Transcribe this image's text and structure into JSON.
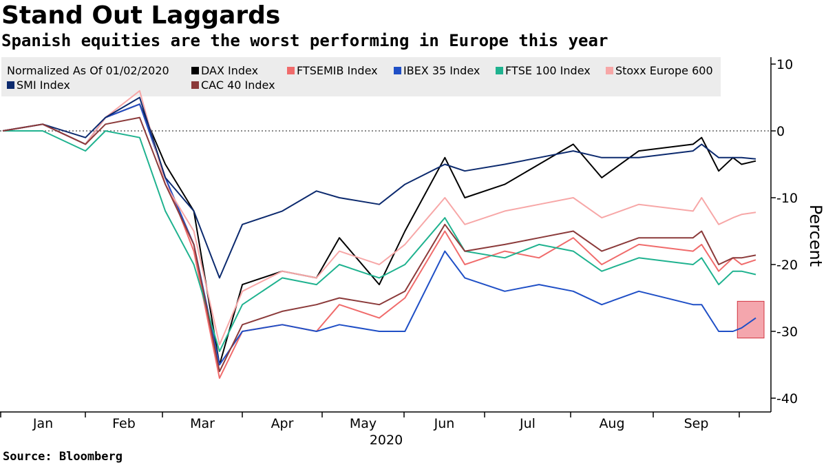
{
  "title": "Stand Out Laggards",
  "subtitle": "Spanish equities are the worst performing in Europe this year",
  "source": "Source: Bloomberg",
  "legend_title": "Normalized As Of 01/02/2020",
  "chart_data": {
    "type": "line",
    "title": "Stand Out Laggards",
    "subtitle": "Spanish equities are the worst performing in Europe this year",
    "xlabel": "2020",
    "ylabel": "Percent",
    "x_tick_labels": [
      "Jan",
      "Feb",
      "Mar",
      "Apr",
      "May",
      "Jun",
      "Jul",
      "Aug",
      "Sep"
    ],
    "x_range": [
      "2020-01-02",
      "2020-09-22"
    ],
    "y_ticks": [
      10,
      0,
      -10,
      -20,
      -30,
      -40
    ],
    "ylim": [
      -40,
      10
    ],
    "y_axis_position": "right",
    "grid": false,
    "legend_placement": "top-left",
    "reference_line": {
      "y": 0,
      "style": "dotted"
    },
    "highlight_box": {
      "x": [
        "2020-09-17",
        "2020-09-22"
      ],
      "y": [
        -25.5,
        -31
      ],
      "color": "#f4a6ad"
    },
    "series": [
      {
        "name": "DAX Index",
        "color": "#000000",
        "x": [
          "2020-01-02",
          "2020-01-16",
          "2020-01-31",
          "2020-02-07",
          "2020-02-19",
          "2020-02-28",
          "2020-03-09",
          "2020-03-18",
          "2020-03-26",
          "2020-04-09",
          "2020-04-21",
          "2020-04-29",
          "2020-05-13",
          "2020-05-22",
          "2020-06-05",
          "2020-06-12",
          "2020-06-26",
          "2020-07-08",
          "2020-07-20",
          "2020-07-30",
          "2020-08-12",
          "2020-08-31",
          "2020-09-03",
          "2020-09-09",
          "2020-09-14",
          "2020-09-17",
          "2020-09-22"
        ],
        "values": [
          0,
          1,
          -2,
          2,
          4,
          -5,
          -12,
          -35,
          -23,
          -21,
          -22,
          -16,
          -23,
          -15,
          -4,
          -10,
          -8,
          -5,
          -2,
          -7,
          -3,
          -2,
          -1,
          -6,
          -4,
          -5,
          -4.5
        ]
      },
      {
        "name": "FTSEMIB Index",
        "color": "#f06b6b",
        "x": [
          "2020-01-02",
          "2020-01-16",
          "2020-01-31",
          "2020-02-07",
          "2020-02-19",
          "2020-02-28",
          "2020-03-09",
          "2020-03-18",
          "2020-03-26",
          "2020-04-09",
          "2020-04-21",
          "2020-04-29",
          "2020-05-13",
          "2020-05-22",
          "2020-06-05",
          "2020-06-12",
          "2020-06-26",
          "2020-07-08",
          "2020-07-20",
          "2020-07-30",
          "2020-08-12",
          "2020-08-31",
          "2020-09-03",
          "2020-09-09",
          "2020-09-14",
          "2020-09-17",
          "2020-09-22"
        ],
        "values": [
          0,
          1,
          -2,
          2,
          4,
          -7,
          -18,
          -37,
          -30,
          -29,
          -30,
          -26,
          -28,
          -25,
          -15,
          -20,
          -18,
          -19,
          -16,
          -20,
          -17,
          -18,
          -17,
          -21,
          -19,
          -20,
          -19.3
        ]
      },
      {
        "name": "IBEX 35 Index",
        "color": "#1f4fc6",
        "x": [
          "2020-01-02",
          "2020-01-16",
          "2020-01-31",
          "2020-02-07",
          "2020-02-19",
          "2020-02-28",
          "2020-03-09",
          "2020-03-18",
          "2020-03-26",
          "2020-04-09",
          "2020-04-21",
          "2020-04-29",
          "2020-05-13",
          "2020-05-22",
          "2020-06-05",
          "2020-06-12",
          "2020-06-26",
          "2020-07-08",
          "2020-07-20",
          "2020-07-30",
          "2020-08-12",
          "2020-08-31",
          "2020-09-03",
          "2020-09-09",
          "2020-09-14",
          "2020-09-17",
          "2020-09-22"
        ],
        "values": [
          0,
          1,
          -2,
          2,
          4,
          -7,
          -17,
          -35,
          -30,
          -29,
          -30,
          -29,
          -30,
          -30,
          -18,
          -22,
          -24,
          -23,
          -24,
          -26,
          -24,
          -26,
          -26,
          -30,
          -30,
          -29.5,
          -28
        ]
      },
      {
        "name": "FTSE 100 Index",
        "color": "#1fb28f",
        "x": [
          "2020-01-02",
          "2020-01-16",
          "2020-01-31",
          "2020-02-07",
          "2020-02-19",
          "2020-02-28",
          "2020-03-09",
          "2020-03-18",
          "2020-03-26",
          "2020-04-09",
          "2020-04-21",
          "2020-04-29",
          "2020-05-13",
          "2020-05-22",
          "2020-06-05",
          "2020-06-12",
          "2020-06-26",
          "2020-07-08",
          "2020-07-20",
          "2020-07-30",
          "2020-08-12",
          "2020-08-31",
          "2020-09-03",
          "2020-09-09",
          "2020-09-14",
          "2020-09-17",
          "2020-09-22"
        ],
        "values": [
          0,
          0,
          -3,
          0,
          -1,
          -12,
          -20,
          -33,
          -26,
          -22,
          -23,
          -20,
          -22,
          -20,
          -13,
          -18,
          -19,
          -17,
          -18,
          -21,
          -19,
          -20,
          -19,
          -23,
          -21,
          -21,
          -21.5
        ]
      },
      {
        "name": "Stoxx Europe 600",
        "color": "#f7a7a7",
        "x": [
          "2020-01-02",
          "2020-01-16",
          "2020-01-31",
          "2020-02-07",
          "2020-02-19",
          "2020-02-28",
          "2020-03-09",
          "2020-03-18",
          "2020-03-26",
          "2020-04-09",
          "2020-04-21",
          "2020-04-29",
          "2020-05-13",
          "2020-05-22",
          "2020-06-05",
          "2020-06-12",
          "2020-06-26",
          "2020-07-08",
          "2020-07-20",
          "2020-07-30",
          "2020-08-12",
          "2020-08-31",
          "2020-09-03",
          "2020-09-09",
          "2020-09-14",
          "2020-09-17",
          "2020-09-22"
        ],
        "values": [
          0,
          1,
          -2,
          2,
          6,
          -8,
          -15,
          -32,
          -24,
          -21,
          -22,
          -18,
          -20,
          -17,
          -10,
          -14,
          -12,
          -11,
          -10,
          -13,
          -11,
          -12,
          -10,
          -14,
          -13,
          -12.5,
          -12.2
        ]
      },
      {
        "name": "SMI Index",
        "color": "#0c2a6e",
        "x": [
          "2020-01-02",
          "2020-01-16",
          "2020-01-31",
          "2020-02-07",
          "2020-02-19",
          "2020-02-28",
          "2020-03-09",
          "2020-03-18",
          "2020-03-26",
          "2020-04-09",
          "2020-04-21",
          "2020-04-29",
          "2020-05-13",
          "2020-05-22",
          "2020-06-05",
          "2020-06-12",
          "2020-06-26",
          "2020-07-08",
          "2020-07-20",
          "2020-07-30",
          "2020-08-12",
          "2020-08-31",
          "2020-09-03",
          "2020-09-09",
          "2020-09-14",
          "2020-09-17",
          "2020-09-22"
        ],
        "values": [
          0,
          1,
          -1,
          2,
          5,
          -7,
          -12,
          -22,
          -14,
          -12,
          -9,
          -10,
          -11,
          -8,
          -5,
          -6,
          -5,
          -4,
          -3,
          -4,
          -4,
          -3,
          -2,
          -4,
          -4,
          -4,
          -4.2
        ]
      },
      {
        "name": "CAC 40 Index",
        "color": "#8b3a3a",
        "x": [
          "2020-01-02",
          "2020-01-16",
          "2020-01-31",
          "2020-02-07",
          "2020-02-19",
          "2020-02-28",
          "2020-03-09",
          "2020-03-18",
          "2020-03-26",
          "2020-04-09",
          "2020-04-21",
          "2020-04-29",
          "2020-05-13",
          "2020-05-22",
          "2020-06-05",
          "2020-06-12",
          "2020-06-26",
          "2020-07-08",
          "2020-07-20",
          "2020-07-30",
          "2020-08-12",
          "2020-08-31",
          "2020-09-03",
          "2020-09-09",
          "2020-09-14",
          "2020-09-17",
          "2020-09-22"
        ],
        "values": [
          0,
          1,
          -2,
          1,
          2,
          -8,
          -17,
          -36,
          -29,
          -27,
          -26,
          -25,
          -26,
          -24,
          -14,
          -18,
          -17,
          -16,
          -15,
          -18,
          -16,
          -16,
          -15,
          -20,
          -19,
          -19,
          -18.6
        ]
      }
    ]
  }
}
